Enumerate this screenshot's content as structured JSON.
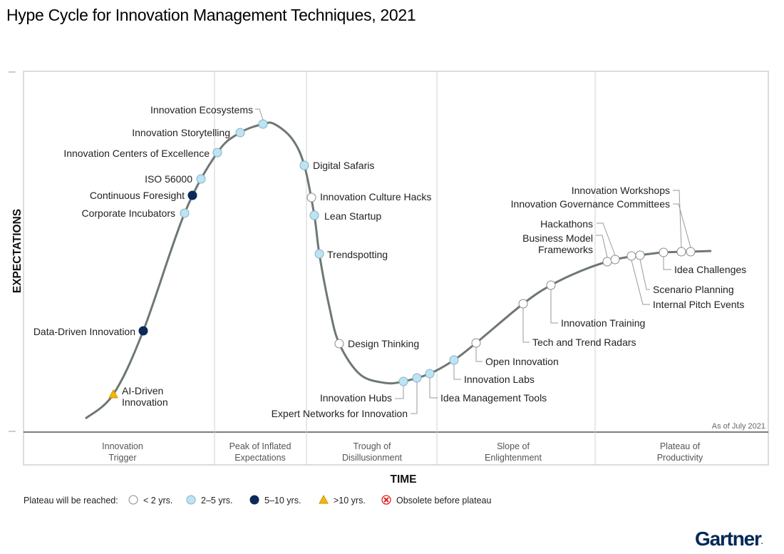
{
  "chart_data": {
    "type": "hype-cycle",
    "title": "Hype Cycle for Innovation Management Techniques, 2021",
    "ylabel": "EXPECTATIONS",
    "xlabel": "TIME",
    "as_of": "As of July 2021",
    "phases": [
      {
        "line1": "Innovation",
        "line2": "Trigger"
      },
      {
        "line1": "Peak of Inflated",
        "line2": "Expectations"
      },
      {
        "line1": "Trough of",
        "line2": "Disillusionment"
      },
      {
        "line1": "Slope of",
        "line2": "Enlightenment"
      },
      {
        "line1": "Plateau of",
        "line2": "Productivity"
      }
    ],
    "legend": {
      "title": "Plateau will be reached:",
      "items": [
        {
          "key": "lt2",
          "label": "< 2 yrs."
        },
        {
          "key": "2to5",
          "label": "2–5 yrs."
        },
        {
          "key": "5to10",
          "label": "5–10 yrs."
        },
        {
          "key": "gt10",
          "label": ">10 yrs."
        },
        {
          "key": "obsolete",
          "label": "Obsolete before plateau"
        }
      ]
    },
    "colors": {
      "lt2": "#ffffff",
      "2to5": "#bfe3f3",
      "5to10": "#0b2a5b",
      "gt10": "#f5b800",
      "obsolete": "#e02020",
      "curve": "#6e7873"
    },
    "points": [
      {
        "name": "AI-Driven Innovation",
        "line1": "AI-Driven",
        "line2": "Innovation",
        "plateau": "gt10"
      },
      {
        "name": "Data-Driven Innovation",
        "plateau": "5to10"
      },
      {
        "name": "Corporate Incubators",
        "plateau": "2to5"
      },
      {
        "name": "Continuous Foresight",
        "plateau": "5to10"
      },
      {
        "name": "ISO 56000",
        "plateau": "2to5"
      },
      {
        "name": "Innovation Centers of Excellence",
        "plateau": "2to5"
      },
      {
        "name": "Innovation Storytelling",
        "plateau": "2to5"
      },
      {
        "name": "Innovation Ecosystems",
        "plateau": "2to5"
      },
      {
        "name": "Digital Safaris",
        "plateau": "2to5"
      },
      {
        "name": "Innovation Culture Hacks",
        "plateau": "lt2"
      },
      {
        "name": "Lean Startup",
        "plateau": "2to5"
      },
      {
        "name": "Trendspotting",
        "plateau": "2to5"
      },
      {
        "name": "Design Thinking",
        "plateau": "lt2"
      },
      {
        "name": "Innovation Hubs",
        "plateau": "2to5"
      },
      {
        "name": "Expert Networks for Innovation",
        "plateau": "2to5"
      },
      {
        "name": "Idea Management Tools",
        "plateau": "2to5"
      },
      {
        "name": "Innovation Labs",
        "plateau": "2to5"
      },
      {
        "name": "Open Innovation",
        "plateau": "lt2"
      },
      {
        "name": "Tech and Trend Radars",
        "plateau": "lt2"
      },
      {
        "name": "Innovation Training",
        "plateau": "lt2"
      },
      {
        "name": "Business Model Frameworks",
        "line1": "Business Model",
        "line2": "Frameworks",
        "plateau": "lt2"
      },
      {
        "name": "Hackathons",
        "plateau": "lt2"
      },
      {
        "name": "Internal Pitch Events",
        "plateau": "lt2"
      },
      {
        "name": "Scenario Planning",
        "plateau": "lt2"
      },
      {
        "name": "Idea Challenges",
        "plateau": "lt2"
      },
      {
        "name": "Innovation Governance Committees",
        "plateau": "lt2"
      },
      {
        "name": "Innovation Workshops",
        "plateau": "lt2"
      }
    ]
  },
  "brand": "Gartner"
}
